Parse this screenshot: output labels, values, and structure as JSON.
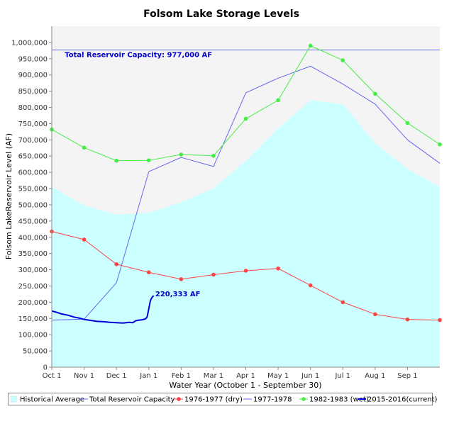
{
  "chart_data": {
    "type": "line",
    "title": "Folsom Lake Storage Levels",
    "xlabel": "Water Year (October 1 - September 30)",
    "ylabel": "Folsom LakeReservoir Level (AF)",
    "ylim": [
      0,
      1050000
    ],
    "y_ticks": [
      0,
      50000,
      100000,
      150000,
      200000,
      250000,
      300000,
      350000,
      400000,
      450000,
      500000,
      550000,
      600000,
      650000,
      700000,
      750000,
      800000,
      850000,
      900000,
      950000,
      1000000
    ],
    "y_tick_labels": [
      "0",
      "50,000",
      "100,000",
      "150,000",
      "200,000",
      "250,000",
      "300,000",
      "350,000",
      "400,000",
      "450,000",
      "500,000",
      "550,000",
      "600,000",
      "650,000",
      "700,000",
      "750,000",
      "800,000",
      "850,000",
      "900,000",
      "950,000",
      "1,000,000"
    ],
    "xlim": [
      0,
      12
    ],
    "x_ticks": [
      0,
      1,
      2,
      3,
      4,
      5,
      6,
      7,
      8,
      9,
      10,
      11
    ],
    "x_tick_labels": [
      "Oct 1",
      "Nov 1",
      "Dec 1",
      "Jan 1",
      "Feb 1",
      "Mar 1",
      "Apr 1",
      "May 1",
      "Jun 1",
      "Jul 1",
      "Aug 1",
      "Sep 1"
    ],
    "grid": false,
    "legend_position": "bottom",
    "series": [
      {
        "name": "Historical Average",
        "kind": "area",
        "color": "#ccffff",
        "x": [
          0,
          1,
          2,
          3,
          4,
          5,
          6,
          7,
          8,
          9,
          10,
          11,
          12
        ],
        "values": [
          555000,
          498000,
          470000,
          475000,
          508000,
          550000,
          635000,
          735000,
          822000,
          810000,
          690000,
          610000,
          555000
        ]
      },
      {
        "name": "Total Reservoir Capacity",
        "kind": "hline",
        "color": "#6666ee",
        "value": 977000
      },
      {
        "name": "1976-1977 (dry)",
        "kind": "line",
        "markers": true,
        "color": "#ff4444",
        "x": [
          0,
          1,
          2,
          3,
          4,
          5,
          6,
          7,
          8,
          9,
          10,
          11,
          12
        ],
        "values": [
          418000,
          393000,
          317000,
          292000,
          271000,
          285000,
          297000,
          304000,
          252000,
          200000,
          163000,
          147000,
          145000
        ]
      },
      {
        "name": "1977-1978",
        "kind": "line",
        "markers": false,
        "color": "#6666ee",
        "x": [
          0,
          1,
          2,
          3,
          4,
          5,
          6,
          7,
          8,
          9,
          10,
          11,
          12
        ],
        "values": [
          145000,
          148000,
          260000,
          602000,
          646000,
          618000,
          845000,
          890000,
          927000,
          872000,
          810000,
          700000,
          628000
        ]
      },
      {
        "name": "1982-1983 (wet)",
        "kind": "line",
        "markers": true,
        "color": "#44ee44",
        "x": [
          0,
          1,
          2,
          3,
          4,
          5,
          6,
          7,
          8,
          9,
          10,
          11,
          12
        ],
        "values": [
          732000,
          676000,
          636000,
          637000,
          655000,
          651000,
          765000,
          822000,
          990000,
          945000,
          842000,
          752000,
          686000
        ]
      },
      {
        "name": "2015-2016(current)",
        "kind": "line",
        "markers": false,
        "color": "#0000dd",
        "x": [
          0,
          0.15,
          0.3,
          0.5,
          0.7,
          0.9,
          1.0,
          1.2,
          1.4,
          1.6,
          1.8,
          2.0,
          2.2,
          2.4,
          2.5,
          2.6,
          2.7,
          2.8,
          2.9,
          2.95,
          3.0,
          3.05,
          3.1,
          3.15
        ],
        "values": [
          173000,
          169000,
          164000,
          160000,
          154000,
          150000,
          147000,
          144000,
          141000,
          140000,
          138000,
          137000,
          136000,
          138000,
          137000,
          143000,
          145000,
          146000,
          149000,
          155000,
          180000,
          205000,
          215000,
          220333
        ]
      }
    ],
    "annotations": [
      {
        "text": "Total Reservoir Capacity: 977,000 AF",
        "x": 0.4,
        "y": 955000
      },
      {
        "text": "220,333 AF",
        "x": 3.2,
        "y": 218000
      }
    ]
  }
}
